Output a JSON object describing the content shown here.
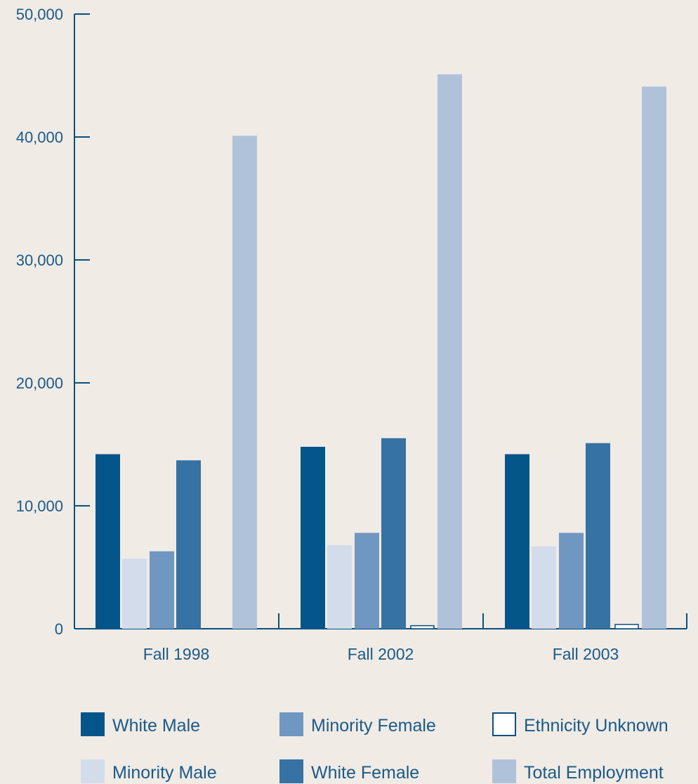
{
  "chart_data": {
    "type": "bar",
    "title": "",
    "xlabel": "",
    "ylabel": "",
    "ylim": [
      0,
      50000
    ],
    "y_ticks": [
      0,
      10000,
      20000,
      30000,
      40000,
      50000
    ],
    "y_tick_labels": [
      "0",
      "10,000",
      "20,000",
      "30,000",
      "40,000",
      "50,000"
    ],
    "categories": [
      "Fall 1998",
      "Fall 2002",
      "Fall 2003"
    ],
    "grid": false,
    "legend_position": "bottom",
    "series": [
      {
        "name": "White Male",
        "color": "#03558a",
        "values": [
          14200,
          14800,
          14200
        ]
      },
      {
        "name": "Minority Male",
        "color": "#d3dcea",
        "values": [
          5700,
          6800,
          6700
        ]
      },
      {
        "name": "Minority Female",
        "color": "#7097c1",
        "values": [
          6300,
          7800,
          7800
        ]
      },
      {
        "name": "White Female",
        "color": "#3672a3",
        "values": [
          13700,
          15500,
          15100
        ]
      },
      {
        "name": "Ethnicity Unknown",
        "color": "#ffffff",
        "values": [
          0,
          250,
          350
        ]
      },
      {
        "name": "Total Employment",
        "color": "#b0c2da",
        "values": [
          40100,
          45100,
          44100
        ]
      }
    ],
    "legend": [
      {
        "name": "White Male",
        "color": "#03558a"
      },
      {
        "name": "Minority Female",
        "color": "#7097c1"
      },
      {
        "name": "Ethnicity Unknown",
        "color": "#ffffff"
      },
      {
        "name": "Minority Male",
        "color": "#d3dcea"
      },
      {
        "name": "White Female",
        "color": "#3672a3"
      },
      {
        "name": "Total Employment",
        "color": "#b0c2da"
      }
    ]
  }
}
